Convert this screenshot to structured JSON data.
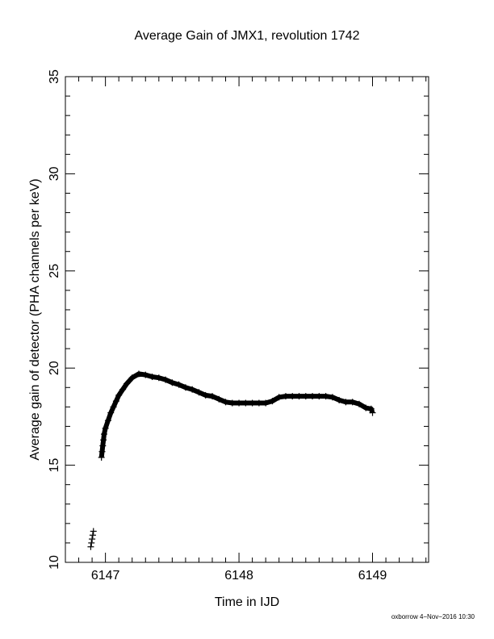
{
  "chart_data": {
    "type": "scatter",
    "title": "Average Gain of JMX1, revolution 1742",
    "xlabel": "Time in IJD",
    "ylabel": "Average gain of detector (PHA channels per keV)",
    "xlim": [
      6146.7,
      6149.42
    ],
    "ylim": [
      10,
      35
    ],
    "x_ticks": [
      "6147",
      "6148",
      "6149"
    ],
    "x_tick_values": [
      6147,
      6148,
      6149
    ],
    "y_ticks": [
      "10",
      "15",
      "20",
      "25",
      "30",
      "35"
    ],
    "y_tick_values": [
      10,
      15,
      20,
      25,
      30,
      35
    ],
    "marker": "plus",
    "grid": false,
    "series": [
      {
        "points": [
          [
            6146.89,
            10.8
          ],
          [
            6146.895,
            11.0
          ],
          [
            6146.9,
            11.2
          ],
          [
            6146.905,
            11.4
          ],
          [
            6146.91,
            11.6
          ],
          [
            6146.97,
            15.4
          ],
          [
            6146.975,
            15.7
          ],
          [
            6146.98,
            16.0
          ],
          [
            6146.985,
            16.3
          ],
          [
            6146.99,
            16.6
          ],
          [
            6147.0,
            16.9
          ],
          [
            6147.02,
            17.3
          ],
          [
            6147.04,
            17.7
          ],
          [
            6147.06,
            18.0
          ],
          [
            6147.08,
            18.3
          ],
          [
            6147.1,
            18.6
          ],
          [
            6147.13,
            18.9
          ],
          [
            6147.16,
            19.2
          ],
          [
            6147.2,
            19.5
          ],
          [
            6147.25,
            19.7
          ],
          [
            6147.3,
            19.65
          ],
          [
            6147.35,
            19.55
          ],
          [
            6147.4,
            19.5
          ],
          [
            6147.45,
            19.4
          ],
          [
            6147.5,
            19.25
          ],
          [
            6147.55,
            19.15
          ],
          [
            6147.6,
            19.0
          ],
          [
            6147.65,
            18.9
          ],
          [
            6147.7,
            18.75
          ],
          [
            6147.75,
            18.6
          ],
          [
            6147.8,
            18.55
          ],
          [
            6147.85,
            18.4
          ],
          [
            6147.9,
            18.25
          ],
          [
            6147.95,
            18.2
          ],
          [
            6148.0,
            18.2
          ],
          [
            6148.05,
            18.2
          ],
          [
            6148.1,
            18.2
          ],
          [
            6148.15,
            18.2
          ],
          [
            6148.2,
            18.2
          ],
          [
            6148.25,
            18.3
          ],
          [
            6148.3,
            18.5
          ],
          [
            6148.35,
            18.55
          ],
          [
            6148.4,
            18.55
          ],
          [
            6148.45,
            18.55
          ],
          [
            6148.5,
            18.55
          ],
          [
            6148.55,
            18.55
          ],
          [
            6148.6,
            18.55
          ],
          [
            6148.65,
            18.55
          ],
          [
            6148.7,
            18.5
          ],
          [
            6148.75,
            18.35
          ],
          [
            6148.8,
            18.25
          ],
          [
            6148.85,
            18.25
          ],
          [
            6148.9,
            18.15
          ],
          [
            6148.95,
            17.95
          ],
          [
            6148.99,
            17.9
          ],
          [
            6149.0,
            17.7
          ]
        ]
      }
    ]
  },
  "footer": "oxborrow  4−Nov−2016 10:30"
}
